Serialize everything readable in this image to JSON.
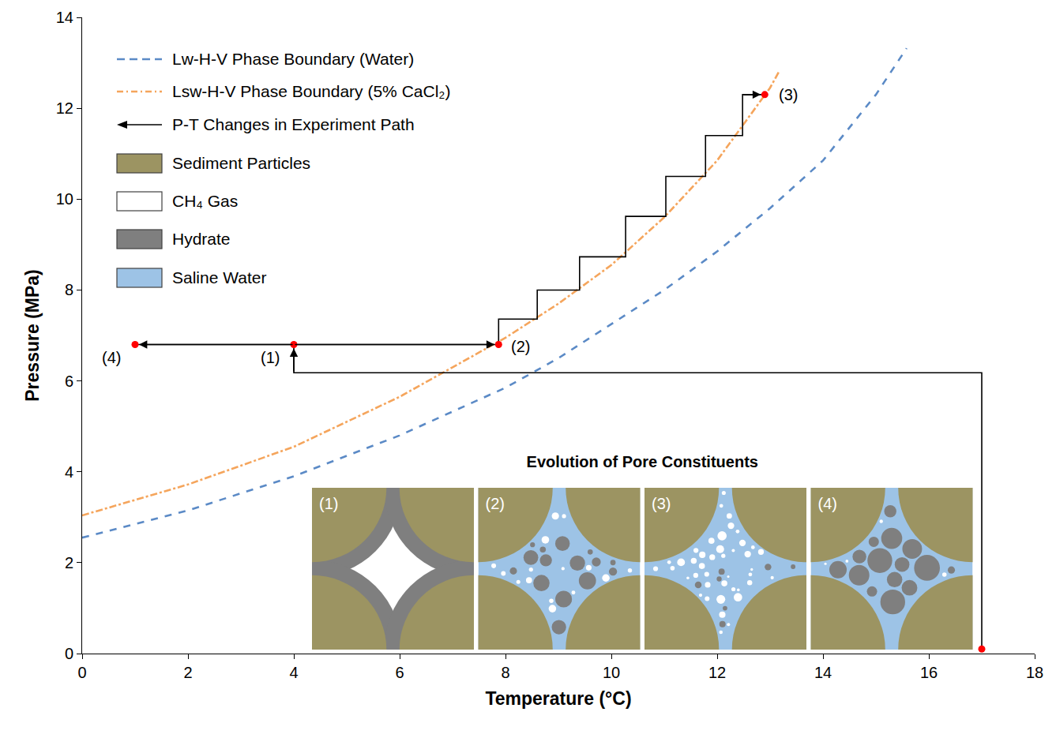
{
  "chart_data": {
    "type": "line",
    "xlabel": "Temperature (°C)",
    "ylabel": "Pressure (MPa)",
    "xlim": [
      0,
      18
    ],
    "xticks": [
      0,
      2,
      4,
      6,
      8,
      10,
      12,
      14,
      16,
      18
    ],
    "ylim": [
      0,
      14
    ],
    "yticks": [
      0,
      2,
      4,
      6,
      8,
      10,
      12,
      14
    ],
    "grid": false,
    "legend": "top-left",
    "series": [
      {
        "name": "Lw-H-V Phase Boundary (Water)",
        "color": "#5b8ac6",
        "line_style": "dash",
        "x": [
          0,
          2,
          4,
          6,
          8,
          9,
          10,
          11,
          12,
          13,
          14,
          15,
          15.58
        ],
        "values": [
          2.55,
          3.15,
          3.9,
          4.8,
          5.85,
          6.5,
          7.25,
          8.0,
          8.85,
          9.8,
          10.85,
          12.3,
          13.32
        ]
      },
      {
        "name": "Lsw-H-V Phase Boundary (5% CaCl₂)",
        "color": "#f5a55c",
        "line_style": "dashdot",
        "x": [
          0,
          2,
          4,
          6,
          7,
          8,
          9,
          10,
          11,
          12,
          13,
          13.18
        ],
        "values": [
          3.04,
          3.72,
          4.55,
          5.65,
          6.3,
          6.95,
          7.7,
          8.55,
          9.6,
          10.85,
          12.45,
          12.83
        ]
      },
      {
        "name": "P-T Changes in Experiment Path",
        "color": "#000000",
        "line_style": "solid",
        "marker": "arrow",
        "x": [
          17,
          17,
          4,
          4,
          7.87,
          7.87,
          8.6,
          8.6,
          9.4,
          9.4,
          10.27,
          10.27,
          11.03,
          11.03,
          11.78,
          11.78,
          12.48,
          12.48,
          12.9,
          null,
          4,
          1
        ],
        "values": [
          0.1,
          6.18,
          6.18,
          6.8,
          6.8,
          7.36,
          7.36,
          8.0,
          8.0,
          8.73,
          8.73,
          9.62,
          9.62,
          10.5,
          10.5,
          11.4,
          11.4,
          12.3,
          12.3,
          null,
          6.8,
          6.8
        ]
      }
    ],
    "points": {
      "color": "#ff0000",
      "x": [
        17,
        4,
        7.87,
        12.9,
        1
      ],
      "values": [
        0.1,
        6.8,
        6.8,
        12.3,
        6.8
      ],
      "labels": [
        null,
        "(1)",
        "(2)",
        "(3)",
        "(4)"
      ]
    },
    "legend_patches": [
      {
        "name": "Sediment Particles",
        "color": "#9c9462"
      },
      {
        "name": "CH₄ Gas",
        "color": "#ffffff"
      },
      {
        "name": "Hydrate",
        "color": "#7f7f7f"
      },
      {
        "name": "Saline Water",
        "color": "#9dc3e6"
      }
    ],
    "inset": {
      "title": "Evolution of Pore Constituents",
      "panels": [
        "(1)",
        "(2)",
        "(3)",
        "(4)"
      ]
    }
  }
}
